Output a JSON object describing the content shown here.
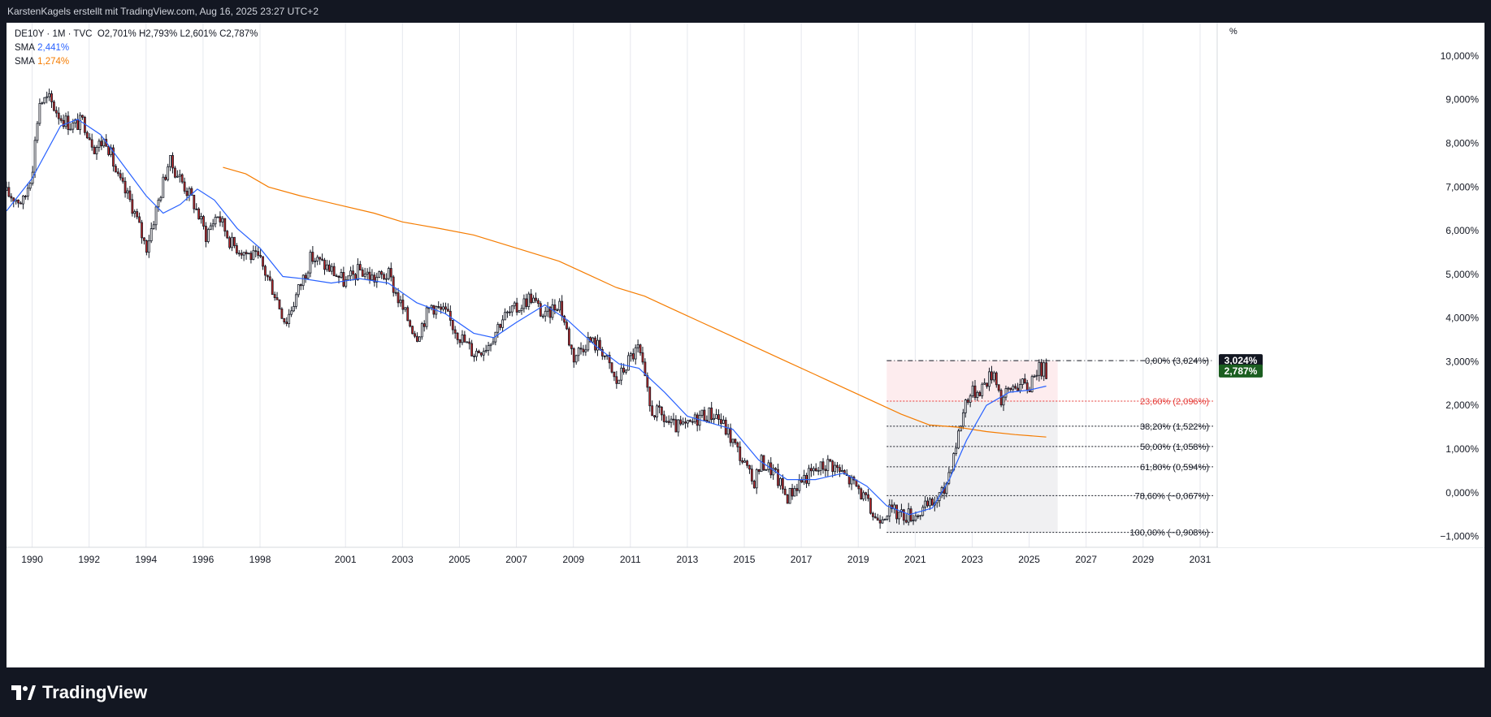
{
  "header": {
    "caption": "KarstenKagels erstellt mit TradingView.com, Aug 16, 2025 23:27 UTC+2"
  },
  "legend": {
    "symbol": "DE10Y · 1M · TVC",
    "ohlc": "O2,701%  H2,793%  L2,601%  C2,787%",
    "sma1_label": "SMA",
    "sma1_value": "2,441%",
    "sma2_label": "SMA",
    "sma2_value": "1,274%"
  },
  "footer": {
    "brand": "TradingView",
    "logo_icon": "tradingview-logo-icon"
  },
  "chart_data": {
    "type": "candlestick",
    "interval": "1M",
    "unit_label": "%",
    "x_range": [
      1989.1,
      2031.6
    ],
    "y_range": [
      -1.25,
      10.5
    ],
    "x_ticks": [
      "1990",
      "1992",
      "1994",
      "1996",
      "1998",
      "2001",
      "2003",
      "2005",
      "2007",
      "2009",
      "2011",
      "2013",
      "2015",
      "2017",
      "2019",
      "2021",
      "2023",
      "2025",
      "2027",
      "2029",
      "2031"
    ],
    "x_tick_values": [
      1990,
      1992,
      1994,
      1996,
      1998,
      2001,
      2003,
      2005,
      2007,
      2009,
      2011,
      2013,
      2015,
      2017,
      2019,
      2021,
      2023,
      2025,
      2027,
      2029,
      2031
    ],
    "y_ticks": [
      "−1,000%",
      "0,000%",
      "1,000%",
      "2,000%",
      "3,000%",
      "4,000%",
      "5,000%",
      "6,000%",
      "7,000%",
      "8,000%",
      "9,000%",
      "10,000%"
    ],
    "y_tick_values": [
      -1,
      0,
      1,
      2,
      3,
      4,
      5,
      6,
      7,
      8,
      9,
      10
    ],
    "grid": "vertical",
    "colors": {
      "up": "#ffffff",
      "down": "#c62828",
      "wick": "#131722",
      "sma_fast": "#2962ff",
      "sma_slow": "#f57c00",
      "last_price_bg": "#1b5e20",
      "fib_high_bg": "#131722",
      "fib_red": "#e53935"
    },
    "price_anchors": [
      [
        1989.1,
        6.85
      ],
      [
        1989.7,
        6.65
      ],
      [
        1990.0,
        7.4
      ],
      [
        1990.25,
        8.95
      ],
      [
        1990.6,
        9.0
      ],
      [
        1991.0,
        8.6
      ],
      [
        1991.4,
        8.4
      ],
      [
        1991.8,
        8.5
      ],
      [
        1992.2,
        7.9
      ],
      [
        1992.6,
        8.1
      ],
      [
        1993.0,
        7.2
      ],
      [
        1993.5,
        6.6
      ],
      [
        1994.0,
        5.6
      ],
      [
        1994.4,
        6.6
      ],
      [
        1994.8,
        7.6
      ],
      [
        1995.2,
        7.2
      ],
      [
        1995.7,
        6.6
      ],
      [
        1996.1,
        5.9
      ],
      [
        1996.5,
        6.4
      ],
      [
        1997.0,
        5.7
      ],
      [
        1997.5,
        5.5
      ],
      [
        1998.0,
        5.3
      ],
      [
        1998.5,
        4.6
      ],
      [
        1998.9,
        3.9
      ],
      [
        1999.8,
        5.4
      ],
      [
        2000.5,
        5.1
      ],
      [
        2001.0,
        4.8
      ],
      [
        2001.5,
        5.1
      ],
      [
        2002.0,
        4.9
      ],
      [
        2002.5,
        5.0
      ],
      [
        2003.0,
        4.2
      ],
      [
        2003.5,
        3.6
      ],
      [
        2004.0,
        4.3
      ],
      [
        2004.5,
        4.1
      ],
      [
        2005.0,
        3.6
      ],
      [
        2005.5,
        3.2
      ],
      [
        2006.0,
        3.4
      ],
      [
        2006.5,
        4.0
      ],
      [
        2007.0,
        4.2
      ],
      [
        2007.5,
        4.5
      ],
      [
        2008.0,
        4.0
      ],
      [
        2008.5,
        4.4
      ],
      [
        2009.0,
        3.1
      ],
      [
        2009.5,
        3.5
      ],
      [
        2010.0,
        3.3
      ],
      [
        2010.5,
        2.5
      ],
      [
        2011.0,
        3.1
      ],
      [
        2011.3,
        3.3
      ],
      [
        2011.7,
        1.9
      ],
      [
        2012.0,
        1.8
      ],
      [
        2012.5,
        1.5
      ],
      [
        2013.0,
        1.5
      ],
      [
        2013.5,
        1.8
      ],
      [
        2014.0,
        1.8
      ],
      [
        2014.4,
        1.4
      ],
      [
        2014.9,
        0.8
      ],
      [
        2015.3,
        0.2
      ],
      [
        2015.6,
        0.7
      ],
      [
        2016.0,
        0.5
      ],
      [
        2016.5,
        -0.1
      ],
      [
        2017.0,
        0.3
      ],
      [
        2017.5,
        0.5
      ],
      [
        2018.0,
        0.7
      ],
      [
        2018.5,
        0.4
      ],
      [
        2019.0,
        0.1
      ],
      [
        2019.6,
        -0.6
      ],
      [
        2020.0,
        -0.4
      ],
      [
        2020.5,
        -0.5
      ],
      [
        2021.0,
        -0.5
      ],
      [
        2021.5,
        -0.3
      ],
      [
        2022.0,
        0.0
      ],
      [
        2022.5,
        1.3
      ],
      [
        2022.8,
        2.2
      ],
      [
        2023.3,
        2.4
      ],
      [
        2023.8,
        2.8
      ],
      [
        2024.0,
        2.1
      ],
      [
        2024.5,
        2.5
      ],
      [
        2025.0,
        2.4
      ],
      [
        2025.2,
        2.85
      ],
      [
        2025.6,
        2.787
      ]
    ],
    "sma_fast": [
      [
        1989.1,
        6.45
      ],
      [
        1990.0,
        7.2
      ],
      [
        1991.0,
        8.4
      ],
      [
        1991.6,
        8.55
      ],
      [
        1992.4,
        8.2
      ],
      [
        1993.2,
        7.5
      ],
      [
        1994.0,
        6.8
      ],
      [
        1994.6,
        6.4
      ],
      [
        1995.2,
        6.6
      ],
      [
        1995.8,
        6.95
      ],
      [
        1996.4,
        6.7
      ],
      [
        1997.2,
        6.05
      ],
      [
        1998.0,
        5.6
      ],
      [
        1998.8,
        4.95
      ],
      [
        1999.5,
        4.9
      ],
      [
        2000.5,
        4.8
      ],
      [
        2001.5,
        4.9
      ],
      [
        2002.5,
        4.8
      ],
      [
        2003.5,
        4.35
      ],
      [
        2004.5,
        4.1
      ],
      [
        2005.5,
        3.65
      ],
      [
        2006.2,
        3.55
      ],
      [
        2007.0,
        3.9
      ],
      [
        2008.0,
        4.3
      ],
      [
        2008.8,
        3.95
      ],
      [
        2009.8,
        3.35
      ],
      [
        2010.6,
        2.95
      ],
      [
        2011.3,
        2.85
      ],
      [
        2012.2,
        2.3
      ],
      [
        2013.0,
        1.75
      ],
      [
        2013.8,
        1.6
      ],
      [
        2014.6,
        1.45
      ],
      [
        2015.5,
        0.75
      ],
      [
        2016.5,
        0.3
      ],
      [
        2017.5,
        0.3
      ],
      [
        2018.5,
        0.45
      ],
      [
        2019.3,
        0.15
      ],
      [
        2020.0,
        -0.3
      ],
      [
        2020.8,
        -0.5
      ],
      [
        2021.6,
        -0.35
      ],
      [
        2022.2,
        0.3
      ],
      [
        2022.8,
        1.2
      ],
      [
        2023.5,
        2.0
      ],
      [
        2024.3,
        2.3
      ],
      [
        2025.0,
        2.35
      ],
      [
        2025.6,
        2.441
      ]
    ],
    "sma_slow": [
      [
        1996.7,
        7.45
      ],
      [
        1997.5,
        7.3
      ],
      [
        1998.3,
        7.0
      ],
      [
        1999.4,
        6.8
      ],
      [
        2000.7,
        6.6
      ],
      [
        2002.0,
        6.4
      ],
      [
        2003.0,
        6.2
      ],
      [
        2004.3,
        6.05
      ],
      [
        2005.5,
        5.9
      ],
      [
        2007.0,
        5.6
      ],
      [
        2008.5,
        5.3
      ],
      [
        2009.5,
        5.0
      ],
      [
        2010.5,
        4.7
      ],
      [
        2011.5,
        4.5
      ],
      [
        2012.5,
        4.2
      ],
      [
        2013.5,
        3.9
      ],
      [
        2014.5,
        3.6
      ],
      [
        2015.5,
        3.3
      ],
      [
        2016.5,
        3.0
      ],
      [
        2017.5,
        2.7
      ],
      [
        2018.5,
        2.4
      ],
      [
        2019.5,
        2.1
      ],
      [
        2020.5,
        1.8
      ],
      [
        2021.5,
        1.55
      ],
      [
        2022.5,
        1.5
      ],
      [
        2023.5,
        1.4
      ],
      [
        2024.5,
        1.33
      ],
      [
        2025.6,
        1.274
      ]
    ],
    "fibonacci": {
      "x_start": 2020.0,
      "x_end": 2026.0,
      "levels": [
        {
          "label": "0,00% (3,024%)",
          "value": 3.024
        },
        {
          "label": "23,60% (2,096%)",
          "value": 2.096
        },
        {
          "label": "38,20% (1,522%)",
          "value": 1.522
        },
        {
          "label": "50,00% (1,058%)",
          "value": 1.058
        },
        {
          "label": "61,80% (0,594%)",
          "value": 0.594
        },
        {
          "label": "78,60% (−0,067%)",
          "value": -0.067
        },
        {
          "label": "100,00% (−0,908%)",
          "value": -0.908
        }
      ]
    },
    "price_labels": [
      {
        "label": "3,024%",
        "value": 3.024
      },
      {
        "label": "2,787%",
        "value": 2.787
      }
    ]
  }
}
